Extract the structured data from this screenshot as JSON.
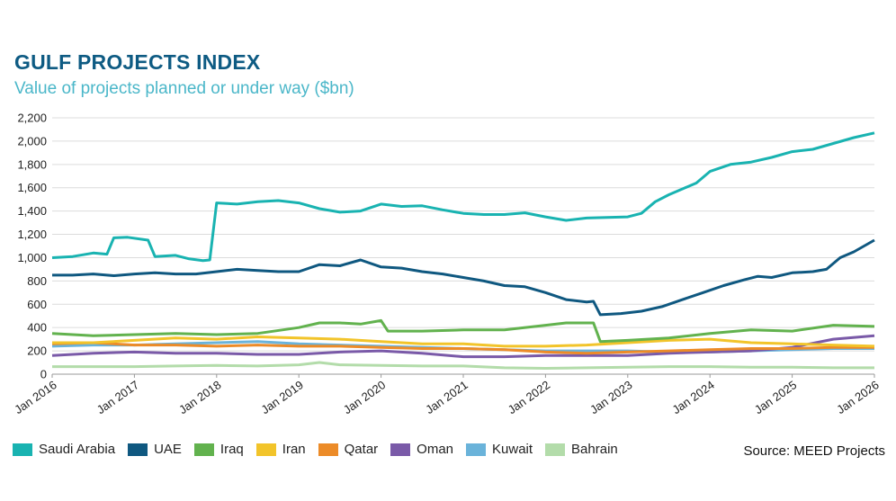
{
  "header": {
    "title": "GULF PROJECTS INDEX",
    "subtitle": "Value of projects planned or under way ($bn)"
  },
  "source": "Source: MEED Projects",
  "chart_data": {
    "type": "line",
    "title": "GULF PROJECTS INDEX",
    "subtitle": "Value of projects planned or under way ($bn)",
    "xlabel": "",
    "ylabel": "",
    "ylim": [
      0,
      2200
    ],
    "xlim": [
      "2016-01",
      "2026-01"
    ],
    "y_ticks": [
      0,
      200,
      400,
      600,
      800,
      1000,
      1200,
      1400,
      1600,
      1800,
      2000,
      2200
    ],
    "y_tick_labels": [
      "0",
      "200",
      "400",
      "600",
      "800",
      "1,000",
      "1,200",
      "1,400",
      "1,600",
      "1,800",
      "2,000",
      "2,200"
    ],
    "x_ticks": [
      "2016-01",
      "2017-01",
      "2018-01",
      "2019-01",
      "2020-01",
      "2021-01",
      "2022-01",
      "2023-01",
      "2024-01",
      "2025-01",
      "2026-01"
    ],
    "x_tick_labels": [
      "Jan 2016",
      "Jan 2017",
      "Jan 2018",
      "Jan 2019",
      "Jan 2020",
      "Jan 2021",
      "Jan 2022",
      "Jan 2023",
      "Jan 2024",
      "Jan 2025",
      "Jan 2026"
    ],
    "grid": "horizontal",
    "legend_position": "bottom",
    "series": [
      {
        "name": "Saudi Arabia",
        "color": "#19b3b1",
        "points": [
          [
            "2016-01",
            1000
          ],
          [
            "2016-04",
            1010
          ],
          [
            "2016-07",
            1040
          ],
          [
            "2016-09",
            1030
          ],
          [
            "2016-10",
            1170
          ],
          [
            "2016-12",
            1175
          ],
          [
            "2017-03",
            1150
          ],
          [
            "2017-04",
            1010
          ],
          [
            "2017-07",
            1020
          ],
          [
            "2017-09",
            990
          ],
          [
            "2017-11",
            975
          ],
          [
            "2017-12",
            980
          ],
          [
            "2018-01",
            1470
          ],
          [
            "2018-04",
            1460
          ],
          [
            "2018-07",
            1480
          ],
          [
            "2018-10",
            1490
          ],
          [
            "2019-01",
            1470
          ],
          [
            "2019-04",
            1420
          ],
          [
            "2019-07",
            1390
          ],
          [
            "2019-10",
            1400
          ],
          [
            "2020-01",
            1460
          ],
          [
            "2020-04",
            1440
          ],
          [
            "2020-07",
            1445
          ],
          [
            "2020-10",
            1410
          ],
          [
            "2021-01",
            1380
          ],
          [
            "2021-04",
            1370
          ],
          [
            "2021-07",
            1370
          ],
          [
            "2021-10",
            1385
          ],
          [
            "2022-01",
            1350
          ],
          [
            "2022-04",
            1320
          ],
          [
            "2022-07",
            1340
          ],
          [
            "2022-10",
            1345
          ],
          [
            "2023-01",
            1350
          ],
          [
            "2023-03",
            1380
          ],
          [
            "2023-05",
            1480
          ],
          [
            "2023-07",
            1540
          ],
          [
            "2023-09",
            1590
          ],
          [
            "2023-11",
            1640
          ],
          [
            "2024-01",
            1740
          ],
          [
            "2024-04",
            1800
          ],
          [
            "2024-07",
            1820
          ],
          [
            "2024-10",
            1860
          ],
          [
            "2025-01",
            1910
          ],
          [
            "2025-04",
            1930
          ],
          [
            "2025-07",
            1980
          ],
          [
            "2025-10",
            2030
          ],
          [
            "2026-01",
            2070
          ]
        ]
      },
      {
        "name": "UAE",
        "color": "#0f5880",
        "points": [
          [
            "2016-01",
            850
          ],
          [
            "2016-04",
            850
          ],
          [
            "2016-07",
            860
          ],
          [
            "2016-10",
            845
          ],
          [
            "2017-01",
            860
          ],
          [
            "2017-04",
            870
          ],
          [
            "2017-07",
            860
          ],
          [
            "2017-10",
            860
          ],
          [
            "2018-01",
            880
          ],
          [
            "2018-04",
            900
          ],
          [
            "2018-07",
            890
          ],
          [
            "2018-10",
            880
          ],
          [
            "2019-01",
            880
          ],
          [
            "2019-04",
            940
          ],
          [
            "2019-07",
            930
          ],
          [
            "2019-10",
            980
          ],
          [
            "2020-01",
            920
          ],
          [
            "2020-04",
            910
          ],
          [
            "2020-07",
            880
          ],
          [
            "2020-10",
            860
          ],
          [
            "2021-01",
            830
          ],
          [
            "2021-04",
            800
          ],
          [
            "2021-07",
            760
          ],
          [
            "2021-10",
            750
          ],
          [
            "2022-01",
            700
          ],
          [
            "2022-04",
            640
          ],
          [
            "2022-07",
            620
          ],
          [
            "2022-08",
            625
          ],
          [
            "2022-09",
            510
          ],
          [
            "2022-12",
            520
          ],
          [
            "2023-03",
            540
          ],
          [
            "2023-06",
            580
          ],
          [
            "2023-09",
            640
          ],
          [
            "2023-12",
            700
          ],
          [
            "2024-03",
            760
          ],
          [
            "2024-06",
            810
          ],
          [
            "2024-08",
            840
          ],
          [
            "2024-10",
            830
          ],
          [
            "2025-01",
            870
          ],
          [
            "2025-04",
            880
          ],
          [
            "2025-06",
            900
          ],
          [
            "2025-08",
            1000
          ],
          [
            "2025-10",
            1050
          ],
          [
            "2026-01",
            1150
          ]
        ]
      },
      {
        "name": "Iraq",
        "color": "#62b24e",
        "points": [
          [
            "2016-01",
            350
          ],
          [
            "2016-07",
            330
          ],
          [
            "2017-01",
            340
          ],
          [
            "2017-07",
            350
          ],
          [
            "2018-01",
            340
          ],
          [
            "2018-07",
            350
          ],
          [
            "2019-01",
            400
          ],
          [
            "2019-04",
            440
          ],
          [
            "2019-07",
            440
          ],
          [
            "2019-10",
            430
          ],
          [
            "2020-01",
            460
          ],
          [
            "2020-02",
            370
          ],
          [
            "2020-07",
            370
          ],
          [
            "2021-01",
            380
          ],
          [
            "2021-07",
            380
          ],
          [
            "2022-01",
            420
          ],
          [
            "2022-04",
            440
          ],
          [
            "2022-08",
            440
          ],
          [
            "2022-09",
            280
          ],
          [
            "2023-01",
            290
          ],
          [
            "2023-07",
            310
          ],
          [
            "2024-01",
            350
          ],
          [
            "2024-07",
            380
          ],
          [
            "2025-01",
            370
          ],
          [
            "2025-07",
            420
          ],
          [
            "2026-01",
            410
          ]
        ]
      },
      {
        "name": "Iran",
        "color": "#f2c42a",
        "points": [
          [
            "2016-01",
            270
          ],
          [
            "2016-07",
            270
          ],
          [
            "2017-01",
            290
          ],
          [
            "2017-07",
            310
          ],
          [
            "2018-01",
            300
          ],
          [
            "2018-07",
            320
          ],
          [
            "2019-01",
            310
          ],
          [
            "2019-07",
            300
          ],
          [
            "2020-01",
            280
          ],
          [
            "2020-07",
            260
          ],
          [
            "2021-01",
            260
          ],
          [
            "2021-07",
            240
          ],
          [
            "2022-01",
            240
          ],
          [
            "2022-07",
            250
          ],
          [
            "2023-01",
            270
          ],
          [
            "2023-07",
            290
          ],
          [
            "2024-01",
            300
          ],
          [
            "2024-07",
            270
          ],
          [
            "2025-01",
            260
          ],
          [
            "2025-07",
            250
          ],
          [
            "2026-01",
            240
          ]
        ]
      },
      {
        "name": "Qatar",
        "color": "#ec8b28",
        "points": [
          [
            "2016-01",
            260
          ],
          [
            "2016-07",
            270
          ],
          [
            "2017-01",
            250
          ],
          [
            "2017-07",
            250
          ],
          [
            "2018-01",
            240
          ],
          [
            "2018-07",
            250
          ],
          [
            "2019-01",
            240
          ],
          [
            "2019-07",
            240
          ],
          [
            "2020-01",
            230
          ],
          [
            "2020-07",
            220
          ],
          [
            "2021-01",
            220
          ],
          [
            "2021-07",
            210
          ],
          [
            "2022-01",
            190
          ],
          [
            "2022-07",
            180
          ],
          [
            "2023-01",
            190
          ],
          [
            "2023-07",
            200
          ],
          [
            "2024-01",
            210
          ],
          [
            "2024-07",
            220
          ],
          [
            "2025-01",
            220
          ],
          [
            "2025-07",
            230
          ],
          [
            "2026-01",
            230
          ]
        ]
      },
      {
        "name": "Oman",
        "color": "#7a5aa8",
        "points": [
          [
            "2016-01",
            160
          ],
          [
            "2016-07",
            180
          ],
          [
            "2017-01",
            190
          ],
          [
            "2017-07",
            180
          ],
          [
            "2018-01",
            180
          ],
          [
            "2018-07",
            170
          ],
          [
            "2019-01",
            170
          ],
          [
            "2019-07",
            190
          ],
          [
            "2020-01",
            200
          ],
          [
            "2020-07",
            180
          ],
          [
            "2021-01",
            150
          ],
          [
            "2021-07",
            150
          ],
          [
            "2022-01",
            160
          ],
          [
            "2022-07",
            160
          ],
          [
            "2023-01",
            160
          ],
          [
            "2023-07",
            180
          ],
          [
            "2024-01",
            190
          ],
          [
            "2024-07",
            200
          ],
          [
            "2025-01",
            230
          ],
          [
            "2025-07",
            300
          ],
          [
            "2026-01",
            330
          ]
        ]
      },
      {
        "name": "Kuwait",
        "color": "#6ab3da",
        "points": [
          [
            "2016-01",
            240
          ],
          [
            "2016-07",
            250
          ],
          [
            "2017-01",
            250
          ],
          [
            "2017-07",
            260
          ],
          [
            "2018-01",
            270
          ],
          [
            "2018-07",
            280
          ],
          [
            "2019-01",
            260
          ],
          [
            "2019-07",
            250
          ],
          [
            "2020-01",
            240
          ],
          [
            "2020-07",
            230
          ],
          [
            "2021-01",
            220
          ],
          [
            "2021-07",
            210
          ],
          [
            "2022-01",
            200
          ],
          [
            "2022-07",
            200
          ],
          [
            "2023-01",
            200
          ],
          [
            "2023-07",
            190
          ],
          [
            "2024-01",
            190
          ],
          [
            "2024-07",
            200
          ],
          [
            "2025-01",
            210
          ],
          [
            "2025-07",
            220
          ],
          [
            "2026-01",
            220
          ]
        ]
      },
      {
        "name": "Bahrain",
        "color": "#b3dcaa",
        "points": [
          [
            "2016-01",
            65
          ],
          [
            "2016-07",
            65
          ],
          [
            "2017-01",
            65
          ],
          [
            "2017-07",
            70
          ],
          [
            "2018-01",
            75
          ],
          [
            "2018-07",
            70
          ],
          [
            "2019-01",
            80
          ],
          [
            "2019-04",
            100
          ],
          [
            "2019-07",
            80
          ],
          [
            "2020-01",
            75
          ],
          [
            "2020-07",
            70
          ],
          [
            "2021-01",
            70
          ],
          [
            "2021-07",
            55
          ],
          [
            "2022-01",
            50
          ],
          [
            "2022-07",
            55
          ],
          [
            "2023-01",
            60
          ],
          [
            "2023-07",
            65
          ],
          [
            "2024-01",
            65
          ],
          [
            "2024-07",
            60
          ],
          [
            "2025-01",
            60
          ],
          [
            "2025-07",
            55
          ],
          [
            "2026-01",
            55
          ]
        ]
      }
    ]
  }
}
